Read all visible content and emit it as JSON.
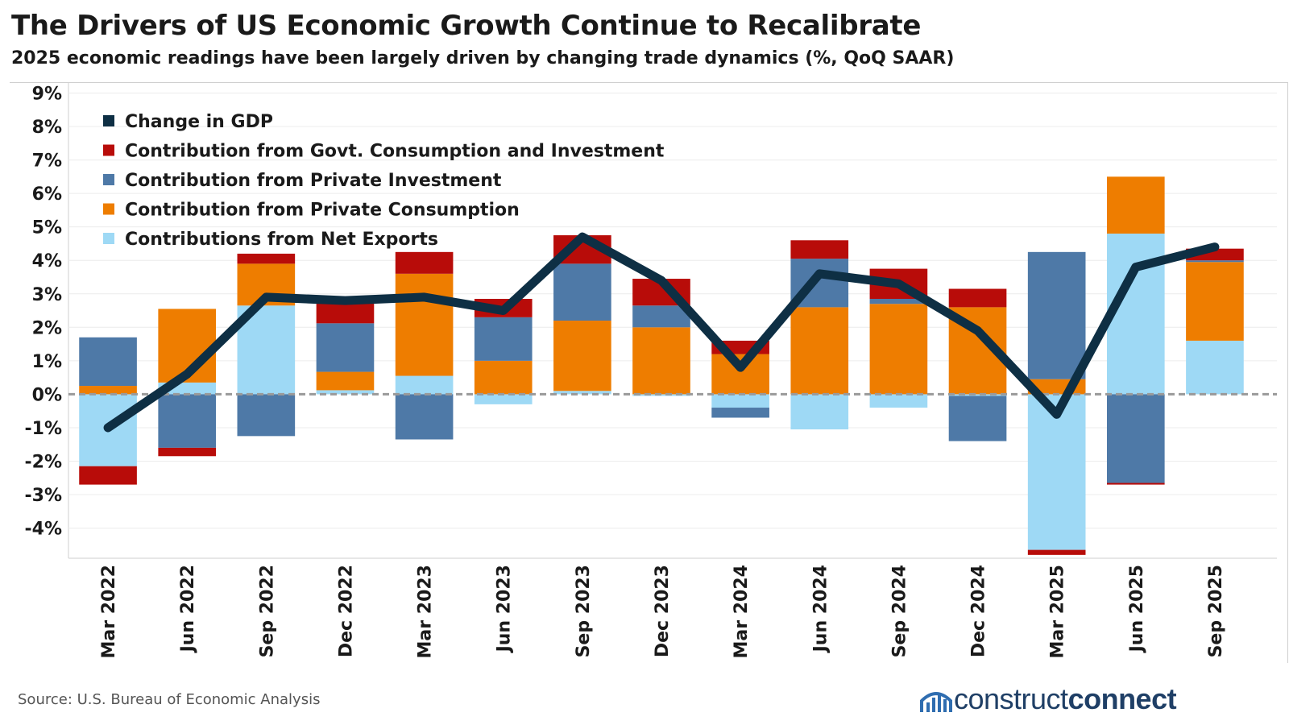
{
  "title": "The Drivers of US Economic Growth Continue to Recalibrate",
  "subtitle": "2025 economic readings have been largely driven by changing trade dynamics (%, QoQ SAAR)",
  "source": "Source: U.S. Bureau of Economic Analysis",
  "logo": {
    "part1": "construct",
    "part2": "connect",
    "icon": "building-logo-icon"
  },
  "chart_data": {
    "type": "bar",
    "stacked": true,
    "categories": [
      "Mar 2022",
      "Jun 2022",
      "Sep 2022",
      "Dec 2022",
      "Mar 2023",
      "Jun 2023",
      "Sep 2023",
      "Dec 2023",
      "Mar 2024",
      "Jun 2024",
      "Sep 2024",
      "Dec 2024",
      "Mar 2025",
      "Jun 2025",
      "Sep 2025"
    ],
    "y_ticks": [
      "9%",
      "8%",
      "7%",
      "6%",
      "5%",
      "4%",
      "3%",
      "2%",
      "1%",
      "0%",
      "-1%",
      "-2%",
      "-3%",
      "-4%"
    ],
    "ylim": [
      -4.9,
      9.3
    ],
    "grid": true,
    "zero_line": "dashed",
    "legend_position": "top-left",
    "series": [
      {
        "name": "Contributions from Net Exports",
        "color": "#9ed9f5",
        "values": [
          -2.15,
          0.35,
          2.65,
          0.12,
          0.55,
          -0.3,
          0.1,
          -0.05,
          -0.4,
          -1.05,
          -0.4,
          -0.05,
          -4.65,
          4.8,
          1.6
        ]
      },
      {
        "name": "Contribution from Private Consumption",
        "color": "#ee7d00",
        "values": [
          0.25,
          2.2,
          1.25,
          0.55,
          3.05,
          1.0,
          2.1,
          2.0,
          1.2,
          2.6,
          2.7,
          2.6,
          0.45,
          1.7,
          2.35
        ]
      },
      {
        "name": "Contribution from Private Investment",
        "color": "#4e79a7",
        "values": [
          1.45,
          -1.6,
          -1.25,
          1.45,
          -1.35,
          1.3,
          1.7,
          0.65,
          -0.3,
          1.45,
          0.15,
          -1.35,
          3.8,
          -2.65,
          0.05
        ]
      },
      {
        "name": "Contribution from Govt. Consumption and Investment",
        "color": "#b80c09",
        "values": [
          -0.55,
          -0.25,
          0.3,
          0.6,
          0.65,
          0.55,
          0.85,
          0.8,
          0.4,
          0.55,
          0.9,
          0.55,
          -0.15,
          -0.05,
          0.35
        ]
      },
      {
        "name": "Change in GDP",
        "color": "#0e2f44",
        "kind": "line",
        "values": [
          -1.0,
          0.6,
          2.9,
          2.8,
          2.9,
          2.5,
          4.7,
          3.4,
          0.8,
          3.6,
          3.3,
          1.9,
          -0.6,
          3.8,
          4.4
        ]
      }
    ],
    "legend_order": [
      "Change in GDP",
      "Contribution from Govt. Consumption and Investment",
      "Contribution from Private Investment",
      "Contribution from Private Consumption",
      "Contributions from Net Exports"
    ]
  }
}
